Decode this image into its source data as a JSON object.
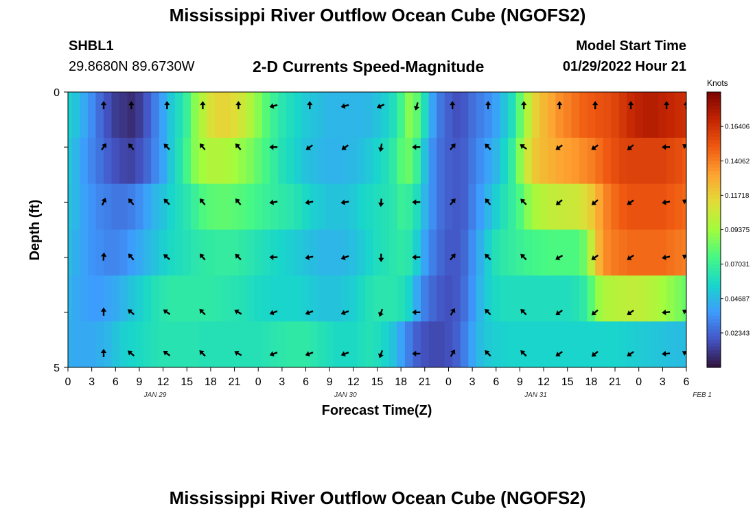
{
  "header": {
    "title": "Mississippi River Outflow Ocean Cube (NGOFS2)",
    "station_id": "SHBL1",
    "coordinates": "29.8680N  89.6730W",
    "subtitle": "2-D Currents Speed-Magnitude",
    "model_start_label": "Model Start Time",
    "model_start_value": "01/29/2022 Hour 21"
  },
  "footer": {
    "title_repeat": "Mississippi River Outflow Ocean Cube (NGOFS2)"
  },
  "chart_data": {
    "type": "heatmap",
    "xlabel": "Forecast Time(Z)",
    "ylabel": "Depth (ft)",
    "x_tick_labels": [
      "0",
      "3",
      "6",
      "9",
      "12",
      "15",
      "18",
      "21",
      "0",
      "3",
      "6",
      "9",
      "12",
      "15",
      "18",
      "21",
      "0",
      "3",
      "6",
      "9",
      "12",
      "15",
      "18",
      "21",
      "0",
      "3",
      "6"
    ],
    "date_labels": [
      {
        "label": "JAN 29",
        "hour": 11
      },
      {
        "label": "JAN 30",
        "hour": 35
      },
      {
        "label": "JAN 31",
        "hour": 59
      },
      {
        "label": "FEB 1",
        "hour": 80
      }
    ],
    "y_tick_labels": [
      "0",
      "5"
    ],
    "ylim": [
      0,
      5
    ],
    "xlim_hours": [
      0,
      78
    ],
    "colorbar": {
      "title": "Knots",
      "tick_labels": [
        "0.16406",
        "0.14062",
        "0.11718",
        "0.09375",
        "0.07031",
        "0.04687",
        "0.02343"
      ],
      "range": [
        0,
        0.1875
      ],
      "colors": [
        "#30123b",
        "#4454c4",
        "#3e9bfe",
        "#18d6cb",
        "#46f884",
        "#a2fc3c",
        "#e1dd37",
        "#fea331",
        "#ef5911",
        "#c22402",
        "#7a0403"
      ]
    },
    "depth_layers": [
      0.25,
      1.0,
      2.0,
      3.0,
      4.0,
      4.75
    ],
    "speed_hours": [
      0,
      1,
      2,
      3,
      4,
      5,
      6,
      7,
      8,
      9,
      10,
      11,
      12,
      13,
      14,
      15,
      16,
      17,
      18,
      19,
      20,
      21,
      22,
      23,
      24,
      25,
      26,
      27,
      28,
      29,
      30,
      31,
      32,
      33,
      34,
      35,
      36,
      37,
      38,
      39,
      40,
      41,
      42,
      43,
      44,
      45,
      46,
      47,
      48,
      49,
      50,
      51,
      52,
      53,
      54,
      55,
      56,
      57,
      58,
      59,
      60,
      61,
      62,
      63,
      64,
      65,
      66,
      67,
      68,
      69,
      70,
      71,
      72,
      73,
      74,
      75,
      76,
      77,
      78
    ],
    "speed_knots": [
      [
        0.055,
        0.05,
        0.042,
        0.034,
        0.025,
        0.018,
        0.012,
        0.01,
        0.008,
        0.012,
        0.02,
        0.03,
        0.04,
        0.052,
        0.06,
        0.07,
        0.088,
        0.1,
        0.11,
        0.115,
        0.115,
        0.112,
        0.106,
        0.098,
        0.088,
        0.078,
        0.07,
        0.064,
        0.06,
        0.056,
        0.052,
        0.05,
        0.048,
        0.046,
        0.046,
        0.046,
        0.046,
        0.046,
        0.047,
        0.05,
        0.054,
        0.06,
        0.072,
        0.088,
        0.08,
        0.06,
        0.04,
        0.028,
        0.022,
        0.018,
        0.02,
        0.026,
        0.03,
        0.034,
        0.04,
        0.05,
        0.06,
        0.08,
        0.1,
        0.116,
        0.124,
        0.13,
        0.136,
        0.14,
        0.144,
        0.148,
        0.15,
        0.152,
        0.154,
        0.157,
        0.162,
        0.167,
        0.17,
        0.172,
        0.172,
        0.17,
        0.168,
        0.166,
        0.165
      ],
      [
        0.052,
        0.046,
        0.038,
        0.032,
        0.027,
        0.022,
        0.018,
        0.015,
        0.014,
        0.018,
        0.024,
        0.032,
        0.04,
        0.052,
        0.062,
        0.074,
        0.088,
        0.094,
        0.098,
        0.098,
        0.097,
        0.094,
        0.09,
        0.086,
        0.08,
        0.074,
        0.068,
        0.062,
        0.058,
        0.054,
        0.05,
        0.048,
        0.046,
        0.045,
        0.045,
        0.046,
        0.047,
        0.049,
        0.052,
        0.056,
        0.06,
        0.066,
        0.078,
        0.082,
        0.07,
        0.05,
        0.034,
        0.026,
        0.022,
        0.02,
        0.022,
        0.028,
        0.034,
        0.04,
        0.046,
        0.056,
        0.068,
        0.088,
        0.108,
        0.12,
        0.124,
        0.127,
        0.13,
        0.132,
        0.134,
        0.137,
        0.14,
        0.145,
        0.15,
        0.154,
        0.157,
        0.158,
        0.158,
        0.158,
        0.158,
        0.158,
        0.156,
        0.154,
        0.15
      ],
      [
        0.05,
        0.046,
        0.04,
        0.036,
        0.032,
        0.03,
        0.028,
        0.028,
        0.03,
        0.034,
        0.04,
        0.046,
        0.05,
        0.056,
        0.06,
        0.064,
        0.07,
        0.076,
        0.079,
        0.08,
        0.08,
        0.079,
        0.077,
        0.075,
        0.072,
        0.07,
        0.068,
        0.066,
        0.064,
        0.062,
        0.058,
        0.054,
        0.052,
        0.05,
        0.05,
        0.05,
        0.052,
        0.056,
        0.058,
        0.06,
        0.062,
        0.064,
        0.07,
        0.068,
        0.06,
        0.046,
        0.034,
        0.026,
        0.022,
        0.02,
        0.022,
        0.03,
        0.038,
        0.046,
        0.054,
        0.062,
        0.068,
        0.076,
        0.088,
        0.096,
        0.1,
        0.103,
        0.104,
        0.105,
        0.106,
        0.11,
        0.118,
        0.13,
        0.14,
        0.146,
        0.15,
        0.152,
        0.152,
        0.152,
        0.152,
        0.152,
        0.15,
        0.148,
        0.146
      ],
      [
        0.048,
        0.044,
        0.04,
        0.036,
        0.034,
        0.032,
        0.032,
        0.034,
        0.038,
        0.042,
        0.046,
        0.05,
        0.054,
        0.058,
        0.06,
        0.062,
        0.064,
        0.066,
        0.067,
        0.068,
        0.068,
        0.068,
        0.066,
        0.064,
        0.062,
        0.06,
        0.058,
        0.056,
        0.054,
        0.052,
        0.05,
        0.048,
        0.046,
        0.046,
        0.046,
        0.047,
        0.049,
        0.052,
        0.056,
        0.06,
        0.062,
        0.064,
        0.066,
        0.064,
        0.054,
        0.04,
        0.03,
        0.024,
        0.02,
        0.02,
        0.024,
        0.034,
        0.044,
        0.054,
        0.062,
        0.066,
        0.068,
        0.07,
        0.072,
        0.074,
        0.075,
        0.076,
        0.076,
        0.076,
        0.076,
        0.082,
        0.102,
        0.126,
        0.138,
        0.142,
        0.144,
        0.146,
        0.146,
        0.146,
        0.146,
        0.146,
        0.144,
        0.142,
        0.14
      ],
      [
        0.046,
        0.042,
        0.04,
        0.038,
        0.038,
        0.04,
        0.042,
        0.046,
        0.05,
        0.054,
        0.058,
        0.062,
        0.064,
        0.066,
        0.066,
        0.066,
        0.066,
        0.066,
        0.066,
        0.065,
        0.064,
        0.063,
        0.062,
        0.06,
        0.058,
        0.057,
        0.056,
        0.056,
        0.056,
        0.056,
        0.054,
        0.052,
        0.05,
        0.05,
        0.05,
        0.052,
        0.054,
        0.058,
        0.062,
        0.064,
        0.064,
        0.064,
        0.062,
        0.056,
        0.042,
        0.03,
        0.024,
        0.02,
        0.018,
        0.02,
        0.026,
        0.036,
        0.046,
        0.054,
        0.058,
        0.06,
        0.06,
        0.06,
        0.06,
        0.06,
        0.06,
        0.06,
        0.06,
        0.06,
        0.062,
        0.066,
        0.078,
        0.092,
        0.098,
        0.1,
        0.101,
        0.102,
        0.102,
        0.1,
        0.098,
        0.094,
        0.09,
        0.086,
        0.082
      ],
      [
        0.044,
        0.042,
        0.042,
        0.042,
        0.044,
        0.046,
        0.05,
        0.054,
        0.056,
        0.058,
        0.06,
        0.062,
        0.063,
        0.063,
        0.063,
        0.063,
        0.063,
        0.062,
        0.062,
        0.062,
        0.062,
        0.062,
        0.062,
        0.062,
        0.062,
        0.063,
        0.064,
        0.065,
        0.066,
        0.066,
        0.066,
        0.064,
        0.062,
        0.06,
        0.058,
        0.058,
        0.058,
        0.06,
        0.062,
        0.06,
        0.056,
        0.05,
        0.04,
        0.03,
        0.022,
        0.018,
        0.016,
        0.016,
        0.018,
        0.022,
        0.03,
        0.04,
        0.048,
        0.052,
        0.054,
        0.055,
        0.056,
        0.056,
        0.056,
        0.056,
        0.056,
        0.056,
        0.056,
        0.056,
        0.056,
        0.056,
        0.056,
        0.056,
        0.056,
        0.056,
        0.055,
        0.054,
        0.053,
        0.052,
        0.051,
        0.05,
        0.049,
        0.048,
        0.048
      ]
    ],
    "arrow_hours": [
      4.5,
      8,
      12.5,
      17,
      21.5,
      26,
      30.5,
      35,
      39.5,
      44,
      48.5,
      53,
      57.5,
      62,
      66.5,
      71,
      75.5,
      78
    ],
    "arrow_direction_deg": [
      [
        0,
        0,
        0,
        0,
        0,
        255,
        0,
        255,
        245,
        195,
        0,
        0,
        0,
        0,
        0,
        0,
        0,
        0
      ],
      [
        35,
        320,
        315,
        320,
        320,
        270,
        235,
        235,
        190,
        270,
        40,
        315,
        305,
        235,
        235,
        230,
        270,
        305
      ],
      [
        25,
        320,
        315,
        320,
        320,
        260,
        260,
        260,
        185,
        270,
        40,
        320,
        315,
        230,
        230,
        235,
        260,
        300
      ],
      [
        5,
        320,
        310,
        320,
        315,
        270,
        260,
        250,
        180,
        270,
        40,
        315,
        315,
        240,
        235,
        235,
        260,
        300
      ],
      [
        0,
        310,
        305,
        315,
        300,
        250,
        250,
        250,
        200,
        270,
        30,
        315,
        315,
        235,
        230,
        235,
        265,
        300
      ],
      [
        0,
        310,
        305,
        315,
        300,
        250,
        250,
        250,
        200,
        270,
        30,
        315,
        315,
        235,
        230,
        235,
        265,
        300
      ]
    ]
  }
}
